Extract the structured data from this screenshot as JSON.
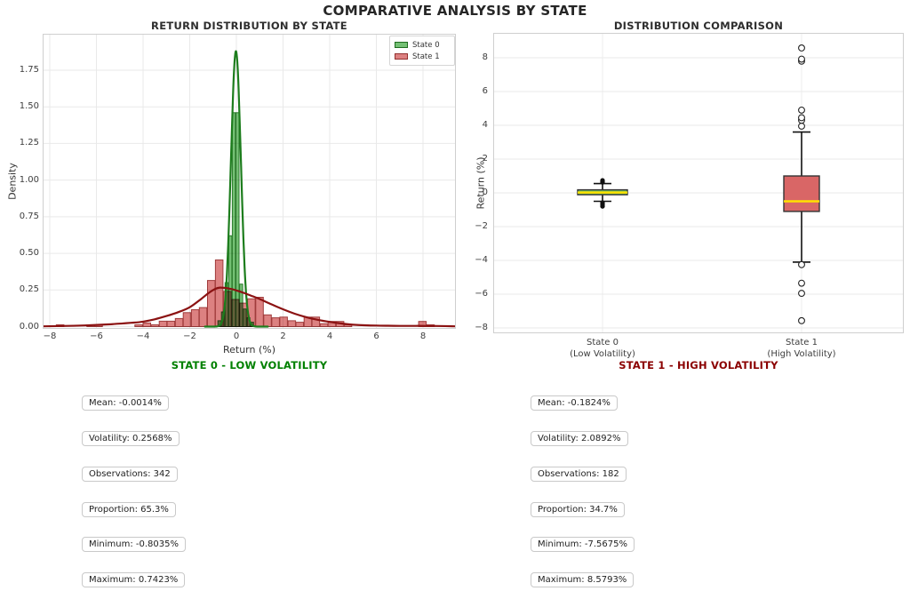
{
  "figure": {
    "title": "COMPARATIVE ANALYSIS BY STATE"
  },
  "chart_data": [
    {
      "type": "histogram",
      "title": "RETURN DISTRIBUTION BY STATE",
      "xlabel": "Return (%)",
      "ylabel": "Density",
      "xlim": [
        -8.3,
        9.4
      ],
      "ylim": [
        -0.02,
        2.0
      ],
      "grid": true,
      "xtick_vals": [
        -8,
        -6,
        -4,
        -2,
        0,
        2,
        4,
        6,
        8
      ],
      "xtick_labels": [
        "−8",
        "−6",
        "−4",
        "−2",
        "0",
        "2",
        "4",
        "6",
        "8"
      ],
      "ytick_vals": [
        0,
        0.25,
        0.5,
        0.75,
        1.0,
        1.25,
        1.5,
        1.75
      ],
      "ytick_labels": [
        "0.00",
        "0.25",
        "0.50",
        "0.75",
        "1.00",
        "1.25",
        "1.50",
        "1.75"
      ],
      "legend_position": "upper right",
      "legend": [
        {
          "label": "State 0",
          "fill": "#74c074",
          "edge": "#1f6b1f"
        },
        {
          "label": "State 1",
          "fill": "#dc8181",
          "edge": "#93302e"
        }
      ],
      "series": [
        {
          "name": "State 0",
          "bin_width": 0.155,
          "fill": "#74c074",
          "edge": "#2c7a2c",
          "bars": [
            [
              -0.805,
              0.04
            ],
            [
              -0.65,
              0.1
            ],
            [
              -0.495,
              0.3
            ],
            [
              -0.34,
              0.62
            ],
            [
              -0.185,
              1.46
            ],
            [
              -0.03,
              1.46
            ],
            [
              0.125,
              0.29
            ],
            [
              0.28,
              0.12
            ],
            [
              0.435,
              0.06
            ],
            [
              0.59,
              0.03
            ]
          ],
          "kde": {
            "kind": "gaussian",
            "mu": -0.02,
            "sigma": 0.212,
            "peak": 1.88,
            "range": [
              -1.35,
              1.35
            ],
            "color": "#1d7d1d",
            "width": 2.2
          }
        },
        {
          "name": "State 1",
          "bin_width": 0.345,
          "fill": "#dc8181",
          "edge": "#a03c3c",
          "bars": [
            [
              -7.73,
              0.012
            ],
            [
              -6.42,
              0.012
            ],
            [
              -6.08,
              0.012
            ],
            [
              -4.36,
              0.012
            ],
            [
              -4.01,
              0.025
            ],
            [
              -3.67,
              0.012
            ],
            [
              -3.32,
              0.037
            ],
            [
              -2.98,
              0.037
            ],
            [
              -2.63,
              0.055
            ],
            [
              -2.29,
              0.095
            ],
            [
              -1.94,
              0.115
            ],
            [
              -1.6,
              0.13
            ],
            [
              -1.25,
              0.315
            ],
            [
              -0.91,
              0.455
            ],
            [
              -0.56,
              0.24
            ],
            [
              -0.22,
              0.185
            ],
            [
              0.13,
              0.16
            ],
            [
              0.47,
              0.19
            ],
            [
              0.82,
              0.2
            ],
            [
              1.16,
              0.08
            ],
            [
              1.51,
              0.06
            ],
            [
              1.85,
              0.065
            ],
            [
              2.2,
              0.04
            ],
            [
              2.54,
              0.03
            ],
            [
              2.89,
              0.065
            ],
            [
              3.23,
              0.065
            ],
            [
              3.58,
              0.02
            ],
            [
              3.92,
              0.035
            ],
            [
              4.27,
              0.035
            ],
            [
              4.61,
              0.012
            ],
            [
              7.8,
              0.035
            ],
            [
              8.15,
              0.012
            ]
          ],
          "kde": {
            "kind": "points",
            "color": "#8b1212",
            "width": 2.2,
            "points": [
              [
                -8.3,
                0.002
              ],
              [
                -7.5,
                0.004
              ],
              [
                -6.5,
                0.008
              ],
              [
                -5.5,
                0.015
              ],
              [
                -4.5,
                0.026
              ],
              [
                -4,
                0.034
              ],
              [
                -3.5,
                0.05
              ],
              [
                -3,
                0.072
              ],
              [
                -2.5,
                0.098
              ],
              [
                -2,
                0.132
              ],
              [
                -1.5,
                0.19
              ],
              [
                -1.2,
                0.228
              ],
              [
                -0.9,
                0.258
              ],
              [
                -0.7,
                0.266
              ],
              [
                -0.45,
                0.263
              ],
              [
                -0.2,
                0.256
              ],
              [
                0,
                0.247
              ],
              [
                0.35,
                0.228
              ],
              [
                0.7,
                0.207
              ],
              [
                1,
                0.188
              ],
              [
                1.5,
                0.152
              ],
              [
                2,
                0.118
              ],
              [
                2.5,
                0.088
              ],
              [
                3,
                0.064
              ],
              [
                3.5,
                0.046
              ],
              [
                4,
                0.032
              ],
              [
                4.5,
                0.021
              ],
              [
                5,
                0.013
              ],
              [
                5.5,
                0.009
              ],
              [
                6,
                0.007
              ],
              [
                6.5,
                0.006
              ],
              [
                7,
                0.005
              ],
              [
                7.5,
                0.005
              ],
              [
                8,
                0.005
              ],
              [
                8.6,
                0.004
              ],
              [
                9.4,
                0.002
              ]
            ]
          }
        }
      ]
    },
    {
      "type": "box",
      "title": "DISTRIBUTION COMPARISON",
      "ylabel": "Return (%)",
      "ylim": [
        -8.3,
        9.5
      ],
      "grid": true,
      "ytick_vals": [
        -8,
        -6,
        -4,
        -2,
        0,
        2,
        4,
        6,
        8
      ],
      "ytick_labels": [
        "−8",
        "−6",
        "−4",
        "−2",
        "0",
        "2",
        "4",
        "6",
        "8"
      ],
      "median_color": "#ffe100",
      "boxes": [
        {
          "label_lines": [
            "State 0",
            "(Low Volatility)"
          ],
          "fill": "#6abf69",
          "median": 0.02,
          "q1": -0.11,
          "q3": 0.18,
          "whisker_low": -0.5,
          "whisker_high": 0.55,
          "fliers": [
            0.62,
            0.68,
            0.74,
            -0.58,
            -0.66,
            -0.74,
            -0.8
          ],
          "flier_style": "filled",
          "box_half_width": 28,
          "cap_half_width": 10
        },
        {
          "label_lines": [
            "State 1",
            "(High Volatility)"
          ],
          "fill": "#d96666",
          "median": -0.5,
          "q1": -1.1,
          "q3": 1.0,
          "whisker_low": -4.1,
          "whisker_high": 3.6,
          "fliers": [
            3.95,
            4.3,
            4.45,
            4.9,
            7.8,
            7.92,
            8.58,
            -4.25,
            -5.35,
            -5.95,
            -7.57
          ],
          "flier_style": "open",
          "box_half_width": 20,
          "cap_half_width": 10
        }
      ]
    }
  ],
  "stats": [
    {
      "title": "STATE 0 - LOW VOLATILITY",
      "color": "#008000",
      "items": [
        "Mean: -0.0014%",
        "Volatility: 0.2568%",
        "Observations: 342",
        "Proportion: 65.3%",
        "Minimum: -0.8035%",
        "Maximum: 0.7423%"
      ]
    },
    {
      "title": "STATE 1 - HIGH VOLATILITY",
      "color": "#8b0000",
      "items": [
        "Mean: -0.1824%",
        "Volatility: 2.0892%",
        "Observations: 182",
        "Proportion: 34.7%",
        "Minimum: -7.5675%",
        "Maximum: 8.5793%"
      ]
    }
  ]
}
